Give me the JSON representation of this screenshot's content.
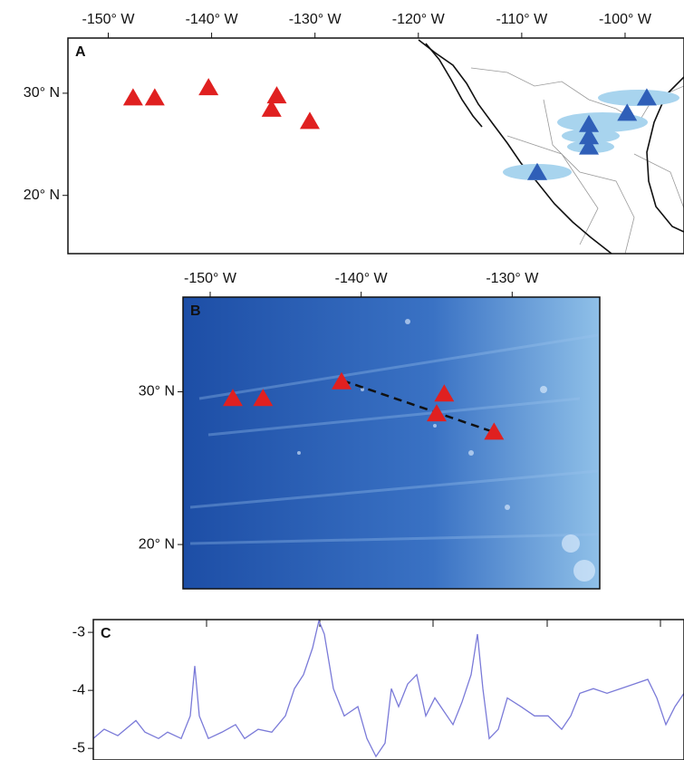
{
  "chart_data": [
    {
      "type": "scatter",
      "panel": "A",
      "xlim": [
        -153.9,
        -94.3
      ],
      "ylim": [
        14.3,
        35.4
      ],
      "xticks": [
        {
          "value": -150,
          "label": "-150° W"
        },
        {
          "value": -140,
          "label": "-140° W"
        },
        {
          "value": -130,
          "label": "-130° W"
        },
        {
          "value": -120,
          "label": "-120° W"
        },
        {
          "value": -110,
          "label": "-110° W"
        },
        {
          "value": -100,
          "label": "-100° W"
        }
      ],
      "yticks": [
        {
          "value": 20,
          "label": "20° N"
        },
        {
          "value": 30,
          "label": "30° N"
        }
      ],
      "series": [
        {
          "color": "#e02020",
          "x": [
            -147.6,
            -145.5,
            -140.3,
            -133.7,
            -134.2,
            -130.5
          ],
          "y": [
            29.6,
            29.6,
            30.6,
            29.8,
            28.5,
            27.3
          ]
        },
        {
          "color": "#2f5fb8",
          "x": [
            -97.9,
            -99.8,
            -103.5,
            -103.5,
            -103.5,
            -108.5
          ],
          "y": [
            29.6,
            28.1,
            27.0,
            25.8,
            24.8,
            22.3
          ]
        }
      ]
    },
    {
      "type": "scatter",
      "panel": "B",
      "xlim": [
        -151.8,
        -124.2
      ],
      "ylim": [
        17.1,
        36.2
      ],
      "xticks": [
        {
          "value": -150,
          "label": "-150° W"
        },
        {
          "value": -140,
          "label": "-140° W"
        },
        {
          "value": -130,
          "label": "-130° W"
        }
      ],
      "yticks": [
        {
          "value": 20,
          "label": "20° N"
        },
        {
          "value": 30,
          "label": "30° N"
        }
      ],
      "series": [
        {
          "color": "#e02020",
          "x": [
            -148.5,
            -146.5,
            -141.3,
            -134.5,
            -135.0,
            -131.2
          ],
          "y": [
            29.6,
            29.6,
            30.7,
            29.9,
            28.6,
            27.4
          ]
        }
      ]
    },
    {
      "type": "line",
      "panel": "C",
      "xlim": [
        0,
        652
      ],
      "ylim": [
        -5.2,
        -2.78
      ],
      "yticks": [
        -3,
        -4,
        -5
      ],
      "series": [
        {
          "color": "#7a7ad8",
          "x": [
            0,
            12,
            27,
            47,
            57,
            72,
            82,
            97,
            107,
            112,
            117,
            127,
            142,
            157,
            167,
            182,
            197,
            212,
            222,
            232,
            242,
            249,
            255,
            265,
            277,
            292,
            302,
            312,
            322,
            329,
            337,
            347,
            357,
            367,
            377,
            387,
            397,
            407,
            417,
            424,
            430,
            437,
            447,
            457,
            472,
            487,
            502,
            517,
            527,
            537,
            552,
            567,
            582,
            597,
            612,
            622,
            632,
            642,
            652
          ],
          "values": [
            -4.83,
            -4.67,
            -4.78,
            -4.52,
            -4.72,
            -4.83,
            -4.72,
            -4.83,
            -4.44,
            -3.58,
            -4.44,
            -4.83,
            -4.72,
            -4.59,
            -4.83,
            -4.67,
            -4.72,
            -4.44,
            -3.97,
            -3.73,
            -3.27,
            -2.8,
            -3.03,
            -3.97,
            -4.44,
            -4.28,
            -4.83,
            -5.14,
            -4.91,
            -3.97,
            -4.28,
            -3.89,
            -3.73,
            -4.44,
            -4.13,
            -4.36,
            -4.59,
            -4.2,
            -3.73,
            -3.03,
            -3.97,
            -4.83,
            -4.67,
            -4.13,
            -4.28,
            -4.44,
            -4.44,
            -4.67,
            -4.44,
            -4.05,
            -3.97,
            -4.05,
            -3.97,
            -3.89,
            -3.81,
            -4.13,
            -4.59,
            -4.28,
            -4.05
          ]
        }
      ]
    }
  ]
}
